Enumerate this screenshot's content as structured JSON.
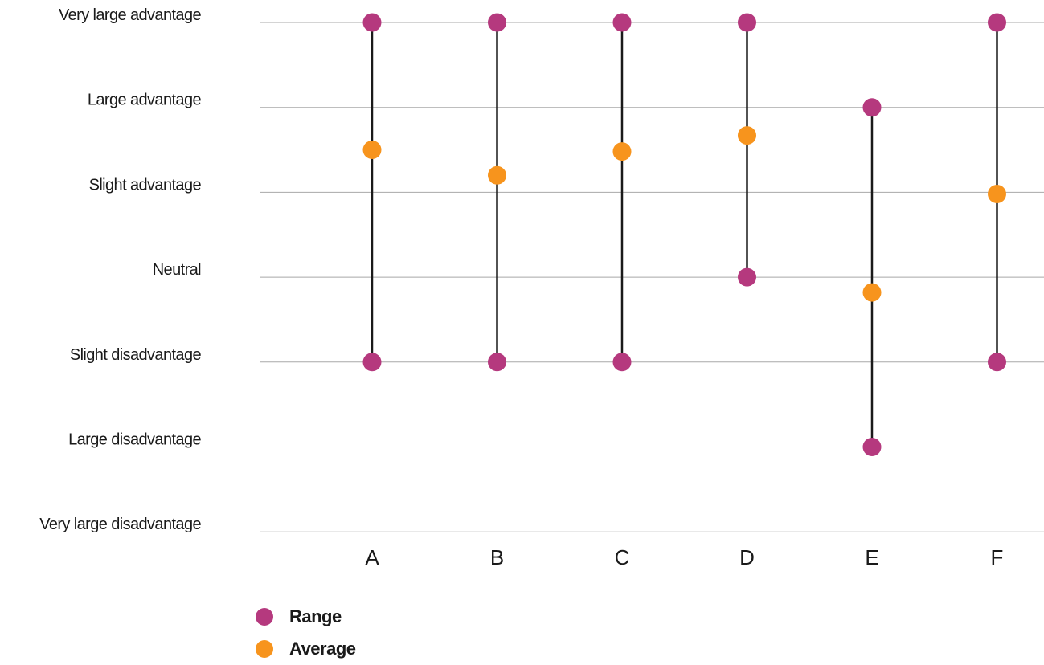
{
  "chart_data": {
    "type": "range-dot",
    "y_levels": [
      "Very large disadvantage",
      "Large disadvantage",
      "Slight disadvantage",
      "Neutral",
      "Slight advantage",
      "Large advantage",
      "Very large advantage"
    ],
    "ylim": [
      -3,
      3
    ],
    "grid": true,
    "categories": [
      "A",
      "B",
      "C",
      "D",
      "E",
      "F"
    ],
    "range_min": [
      -1,
      -1,
      -1,
      0,
      -2,
      -1
    ],
    "range_max": [
      3,
      3,
      3,
      3,
      2,
      3
    ],
    "average": [
      1.5,
      1.2,
      1.48,
      1.67,
      -0.18,
      0.98
    ],
    "legend_position": "bottom-left"
  },
  "colors": {
    "range": "#b5397e",
    "average": "#f7941d",
    "connector": "#1a1a1a",
    "grid": "#a8a8a8"
  },
  "legend": [
    {
      "label": "Range",
      "color_key": "range"
    },
    {
      "label": "Average",
      "color_key": "average"
    }
  ]
}
